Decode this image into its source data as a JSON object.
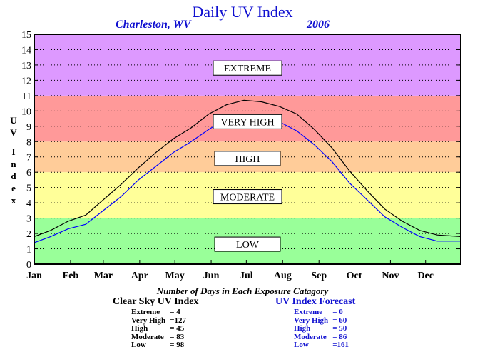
{
  "chart_data": {
    "type": "line",
    "title": "Daily UV Index",
    "location": "Charleston, WV",
    "year": "2006",
    "ylabel": "UV Index",
    "ylim": [
      0,
      15
    ],
    "yticks": [
      "0",
      "1",
      "2",
      "3",
      "4",
      "5",
      "6",
      "7",
      "8",
      "9",
      "10",
      "11",
      "12",
      "13",
      "14",
      "15"
    ],
    "months": [
      "Jan",
      "Feb",
      "Mar",
      "Apr",
      "May",
      "Jun",
      "Jul",
      "Aug",
      "Sep",
      "Oct",
      "Nov",
      "Dec"
    ],
    "zones": [
      {
        "label": "LOW",
        "from": 0,
        "to": 3,
        "color": "#99ff99",
        "label_at": 1.3
      },
      {
        "label": "MODERATE",
        "from": 3,
        "to": 6,
        "color": "#ffff99",
        "label_at": 4.4
      },
      {
        "label": "HIGH",
        "from": 6,
        "to": 8,
        "color": "#ffcc99",
        "label_at": 6.9
      },
      {
        "label": "VERY HIGH",
        "from": 8,
        "to": 11,
        "color": "#ff9999",
        "label_at": 9.3
      },
      {
        "label": "EXTREME",
        "from": 11,
        "to": 15,
        "color": "#dd99ff",
        "label_at": 12.8
      }
    ],
    "series": [
      {
        "name": "Clear Sky UV Index",
        "color": "#000000",
        "x": [
          1,
          15,
          30,
          45,
          60,
          75,
          90,
          105,
          120,
          135,
          150,
          165,
          180,
          195,
          210,
          225,
          240,
          255,
          270,
          285,
          300,
          315,
          330,
          345,
          365
        ],
        "y": [
          1.8,
          2.2,
          2.8,
          3.2,
          4.2,
          5.2,
          6.3,
          7.3,
          8.2,
          8.9,
          9.8,
          10.4,
          10.7,
          10.6,
          10.3,
          9.8,
          8.8,
          7.6,
          6.1,
          4.8,
          3.6,
          2.8,
          2.2,
          1.9,
          1.8
        ]
      },
      {
        "name": "UV Index Forecast",
        "color": "#0000ff",
        "x": [
          1,
          15,
          30,
          45,
          60,
          75,
          90,
          105,
          120,
          135,
          150,
          165,
          180,
          195,
          210,
          225,
          240,
          255,
          270,
          285,
          300,
          315,
          330,
          345,
          365
        ],
        "y": [
          1.4,
          1.8,
          2.3,
          2.6,
          3.5,
          4.4,
          5.5,
          6.4,
          7.3,
          8.0,
          8.8,
          9.5,
          9.7,
          9.6,
          9.3,
          8.7,
          7.8,
          6.7,
          5.3,
          4.2,
          3.1,
          2.4,
          1.8,
          1.5,
          1.5
        ]
      }
    ]
  },
  "labels": {
    "bottom_title": "Number of Days in Each Exposure Catagory",
    "clear_sky": {
      "title": "Clear Sky UV Index",
      "rows": [
        {
          "label": "Extreme",
          "value": "=    4"
        },
        {
          "label": "Very High",
          "value": "=127"
        },
        {
          "label": "High",
          "value": "=   45"
        },
        {
          "label": "Moderate",
          "value": "=   83"
        },
        {
          "label": "Low",
          "value": "=   98"
        }
      ]
    },
    "forecast": {
      "title": "UV Index Forecast",
      "rows": [
        {
          "label": "Extreme",
          "value": "=     0"
        },
        {
          "label": "Very High",
          "value": "=   60"
        },
        {
          "label": "High",
          "value": "=   50"
        },
        {
          "label": "Moderate",
          "value": "=   86"
        },
        {
          "label": "Low",
          "value": "=161"
        }
      ]
    }
  }
}
